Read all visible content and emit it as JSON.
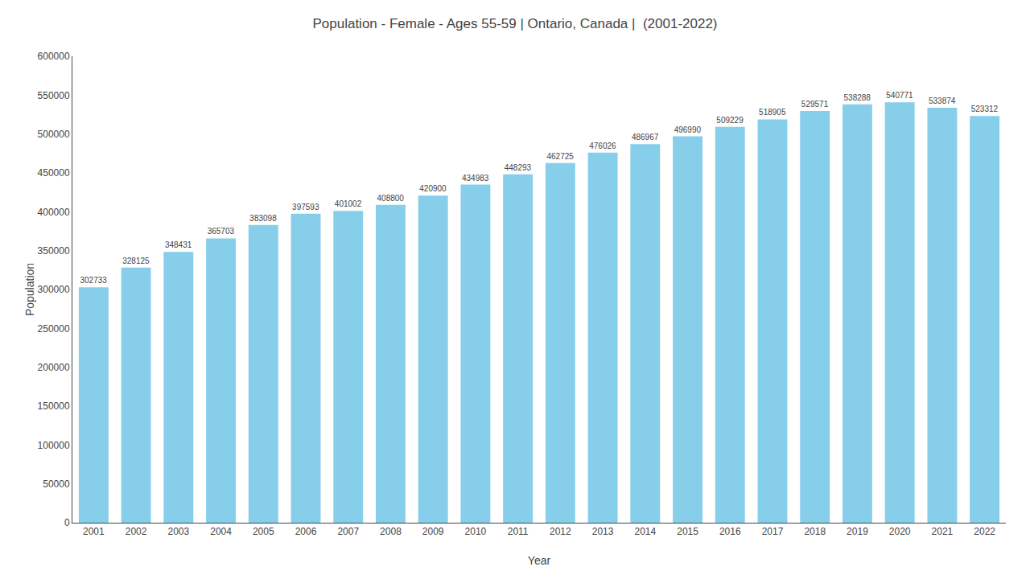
{
  "chart_data": {
    "type": "bar",
    "title": "Population - Female - Ages 55-59 | Ontario, Canada |  (2001-2022)",
    "xlabel": "Year",
    "ylabel": "Population",
    "categories": [
      "2001",
      "2002",
      "2003",
      "2004",
      "2005",
      "2006",
      "2007",
      "2008",
      "2009",
      "2010",
      "2011",
      "2012",
      "2013",
      "2014",
      "2015",
      "2016",
      "2017",
      "2018",
      "2019",
      "2020",
      "2021",
      "2022"
    ],
    "values": [
      302733,
      328125,
      348431,
      365703,
      383098,
      397593,
      401002,
      408800,
      420900,
      434983,
      448293,
      462725,
      476026,
      486967,
      496990,
      509229,
      518905,
      529571,
      538288,
      540771,
      533874,
      523312
    ],
    "color": "#87CEEB",
    "ylim": [
      0,
      600000
    ],
    "yticks": [
      0,
      50000,
      100000,
      150000,
      200000,
      250000,
      300000,
      350000,
      400000,
      450000,
      500000,
      550000,
      600000
    ],
    "grid": false,
    "data_labels": true
  }
}
